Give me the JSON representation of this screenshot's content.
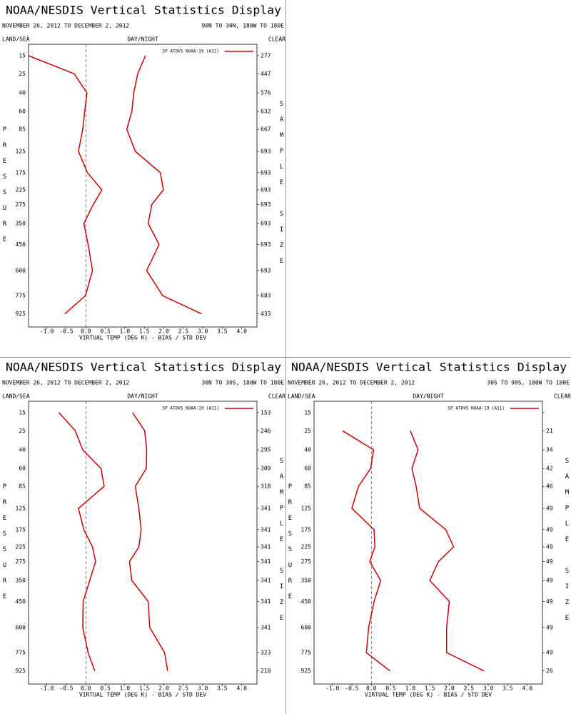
{
  "chart_data": [
    {
      "type": "line",
      "title": "NOAA/NESDIS Vertical Statistics Display",
      "subtitle": "NOVEMBER 26, 2012 TO DECEMBER 2, 2012",
      "region": "90N TO 30N, 180W TO 180E",
      "left_header": "LAND/SEA",
      "center_header": "DAY/NIGHT",
      "right_header": "CLEAR",
      "ylabel": "PRESSURE",
      "y2label": "SAMPLE SIZE",
      "xlabel": "VIRTUAL TEMP (DEG K) - BIAS / STD DEV",
      "legend_label": "SP ATOVS NOAA-19 (A11)",
      "legend_position": "upper right",
      "zero_line": true,
      "yscale": "power",
      "yexponent": 0.286,
      "ylim": [
        10.4,
        1043
      ],
      "xlim": [
        -1.47,
        4.39
      ],
      "xticks": [
        {
          "value": -1.0,
          "label": "-1.0"
        },
        -0.5,
        {
          "value": 0.0,
          "label": "0.0"
        },
        0.5,
        {
          "value": 1.0,
          "label": "1.0"
        },
        1.5,
        {
          "value": 2.0,
          "label": "2.0"
        },
        2.5,
        {
          "value": 3.0,
          "label": "3.0"
        },
        3.5,
        {
          "value": 4.0,
          "label": "4.0"
        }
      ],
      "y": [
        15,
        25,
        40,
        60,
        85,
        125,
        175,
        225,
        275,
        350,
        450,
        600,
        775,
        925
      ],
      "sample_sizes": [
        277,
        447,
        576,
        632,
        667,
        693,
        693,
        693,
        693,
        693,
        693,
        693,
        683,
        433
      ],
      "series": [
        {
          "color": "#cc0000",
          "values": [
            -1.47,
            -0.3,
            0.03,
            -0.03,
            -0.08,
            -0.19,
            0.04,
            0.41,
            0.19,
            -0.05,
            0.06,
            0.17,
            -0.01,
            -0.54
          ]
        },
        {
          "color": "#cc0000",
          "values": [
            1.53,
            1.33,
            1.23,
            1.18,
            1.05,
            1.27,
            1.91,
            1.99,
            1.69,
            1.6,
            1.88,
            1.56,
            1.97,
            2.97
          ]
        }
      ]
    },
    {
      "type": "line",
      "title": "NOAA/NESDIS Vertical Statistics Display",
      "subtitle": "NOVEMBER 26, 2012 TO DECEMBER 2, 2012",
      "region": "30N TO 30S, 180W TO 180E",
      "left_header": "LAND/SEA",
      "center_header": "DAY/NIGHT",
      "right_header": "CLEAR",
      "ylabel": "PRESSURE",
      "y2label": "SAMPLE SIZE",
      "xlabel": "VIRTUAL TEMP (DEG K) - BIAS / STD DEV",
      "legend_label": "SP ATOVS NOAA-19 (A11)",
      "legend_position": "upper right",
      "zero_line": true,
      "yscale": "power",
      "yexponent": 0.286,
      "ylim": [
        10.4,
        1043
      ],
      "xlim": [
        -1.47,
        4.39
      ],
      "xticks": [
        {
          "value": -1.0,
          "label": "-1.0"
        },
        -0.5,
        {
          "value": 0.0,
          "label": "0.0"
        },
        0.5,
        {
          "value": 1.0,
          "label": "1.0"
        },
        1.5,
        {
          "value": 2.0,
          "label": "2.0"
        },
        2.5,
        {
          "value": 3.0,
          "label": "3.0"
        },
        3.5,
        {
          "value": 4.0,
          "label": "4.0"
        }
      ],
      "y": [
        15,
        25,
        40,
        60,
        85,
        125,
        175,
        225,
        275,
        350,
        450,
        600,
        775,
        925
      ],
      "sample_sizes": [
        153,
        246,
        295,
        309,
        318,
        341,
        341,
        341,
        341,
        341,
        341,
        341,
        323,
        210
      ],
      "series": [
        {
          "color": "#cc0000",
          "values": [
            -0.69,
            -0.27,
            -0.08,
            0.39,
            0.47,
            -0.19,
            -0.05,
            0.17,
            0.25,
            0.1,
            -0.07,
            -0.08,
            0.06,
            0.23
          ]
        },
        {
          "color": "#cc0000",
          "values": [
            1.2,
            1.51,
            1.56,
            1.55,
            1.27,
            1.36,
            1.42,
            1.36,
            1.12,
            1.18,
            1.6,
            1.64,
            2.02,
            2.1
          ]
        }
      ]
    },
    {
      "type": "line",
      "title": "NOAA/NESDIS Vertical Statistics Display",
      "subtitle": "NOVEMBER 26, 2012 TO DECEMBER 2, 2012",
      "region": "30S TO 90S, 180W TO 180E",
      "left_header": "LAND/SEA",
      "center_header": "DAY/NIGHT",
      "right_header": "CLEAR",
      "ylabel": "PRESSURE",
      "y2label": "SAMPLE SIZE",
      "xlabel": "VIRTUAL TEMP (DEG K) - BIAS / STD DEV",
      "legend_label": "SP ATOVS NOAA-19 (A11)",
      "legend_position": "upper right",
      "zero_line": true,
      "yscale": "power",
      "yexponent": 0.286,
      "ylim": [
        10.4,
        1043
      ],
      "xlim": [
        -1.47,
        4.39
      ],
      "xticks": [
        {
          "value": -1.0,
          "label": "-1.0"
        },
        -0.5,
        {
          "value": 0.0,
          "label": "0.0"
        },
        0.5,
        {
          "value": 1.0,
          "label": "1.0"
        },
        1.5,
        {
          "value": 2.0,
          "label": "2.0"
        },
        2.5,
        {
          "value": 3.0,
          "label": "3.0"
        },
        3.5,
        {
          "value": 4.0,
          "label": "4.0"
        }
      ],
      "y": [
        15,
        25,
        40,
        60,
        85,
        125,
        175,
        225,
        275,
        350,
        450,
        600,
        775,
        925
      ],
      "sample_sizes": [
        null,
        21,
        34,
        42,
        46,
        49,
        49,
        49,
        49,
        49,
        49,
        49,
        49,
        26
      ],
      "series": [
        {
          "color": "#cc0000",
          "values": [
            null,
            -0.74,
            0.06,
            -0.02,
            -0.33,
            -0.5,
            0.07,
            0.09,
            -0.04,
            0.24,
            0.07,
            -0.07,
            -0.13,
            0.48
          ]
        },
        {
          "color": "#cc0000",
          "values": [
            null,
            1.0,
            1.2,
            1.04,
            1.15,
            1.24,
            1.91,
            2.11,
            1.72,
            1.5,
            2.0,
            1.93,
            1.93,
            2.89
          ]
        }
      ]
    }
  ]
}
